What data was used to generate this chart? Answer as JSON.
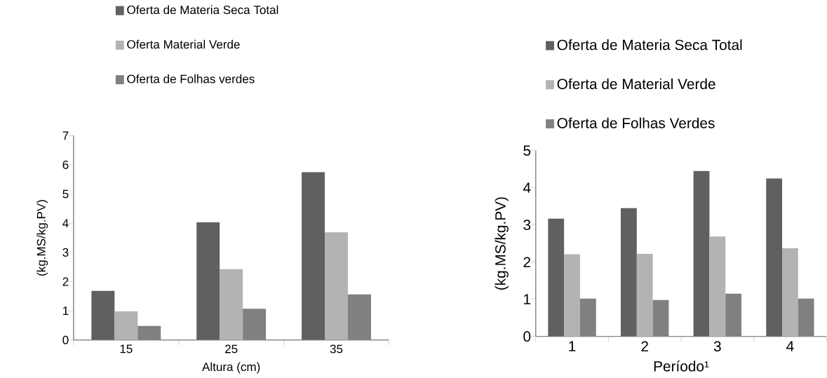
{
  "chart_data": [
    {
      "type": "bar",
      "xlabel": "Altura (cm)",
      "ylabel": "(kg.MS/kg.PV)",
      "categories": [
        "15",
        "25",
        "35"
      ],
      "ylim": [
        0,
        7
      ],
      "yticks": [
        0,
        1,
        2,
        3,
        4,
        5,
        6,
        7
      ],
      "legend": "top",
      "grid": false,
      "series": [
        {
          "name": "Oferta de Materia Seca Total",
          "color": "#606060",
          "values": [
            1.68,
            4.03,
            5.75
          ]
        },
        {
          "name": "Oferta Material Verde",
          "color": "#b3b3b3",
          "values": [
            0.98,
            2.43,
            3.69
          ]
        },
        {
          "name": "Oferta de Folhas verdes",
          "color": "#808080",
          "values": [
            0.48,
            1.07,
            1.56
          ]
        }
      ]
    },
    {
      "type": "bar",
      "xlabel": "Período¹",
      "ylabel": "(kg.MS/kg.PV)",
      "categories": [
        "1",
        "2",
        "3",
        "4"
      ],
      "ylim": [
        0,
        5
      ],
      "yticks": [
        0,
        1,
        2,
        3,
        4,
        5
      ],
      "legend": "top",
      "grid": false,
      "series": [
        {
          "name": "Oferta de Materia Seca Total",
          "color": "#606060",
          "values": [
            3.17,
            3.45,
            4.45,
            4.25
          ]
        },
        {
          "name": "Oferta de Material Verde",
          "color": "#b3b3b3",
          "values": [
            2.21,
            2.22,
            2.69,
            2.37
          ]
        },
        {
          "name": "Oferta de Folhas Verdes",
          "color": "#808080",
          "values": [
            1.02,
            0.98,
            1.15,
            1.02
          ]
        }
      ]
    }
  ]
}
